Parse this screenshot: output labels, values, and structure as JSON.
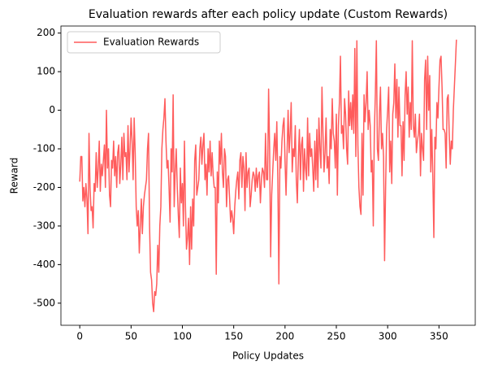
{
  "chart_data": {
    "type": "line",
    "title": "Evaluation rewards after each policy update (Custom Rewards)",
    "xlabel": "Policy Updates",
    "ylabel": "Reward",
    "xlim": [
      -18.35,
      385.35
    ],
    "ylim": [
      -557.3,
      218.3
    ],
    "xticks": [
      0,
      50,
      100,
      150,
      200,
      250,
      300,
      350
    ],
    "yticks": [
      -500,
      -400,
      -300,
      -200,
      -100,
      0,
      100,
      200
    ],
    "legend": "upper left",
    "grid": false,
    "series": [
      {
        "name": "Evaluation Rewards",
        "color": "#ff5c5c",
        "values": [
          -185,
          -120,
          -120,
          -235,
          -200,
          -250,
          -190,
          -230,
          -320,
          -60,
          -200,
          -260,
          -250,
          -305,
          -190,
          -210,
          -110,
          -200,
          -150,
          -80,
          -210,
          -140,
          -170,
          -130,
          -90,
          -200,
          0,
          -150,
          -100,
          -220,
          -250,
          -130,
          -150,
          -80,
          -170,
          -120,
          -200,
          -110,
          -90,
          -190,
          -140,
          -70,
          -180,
          -60,
          -120,
          -110,
          -180,
          -40,
          -160,
          -100,
          -20,
          -80,
          -180,
          -20,
          -110,
          -250,
          -300,
          -260,
          -370,
          -300,
          -230,
          -320,
          -250,
          -220,
          -200,
          -180,
          -100,
          -60,
          -300,
          -420,
          -440,
          -500,
          -522,
          -470,
          -480,
          -450,
          -350,
          -420,
          -300,
          -250,
          -100,
          -50,
          -20,
          30,
          -80,
          -150,
          -130,
          -200,
          -290,
          -100,
          -160,
          40,
          -250,
          -160,
          -100,
          -200,
          -270,
          -330,
          -150,
          -240,
          -190,
          -300,
          -80,
          -250,
          -360,
          -330,
          -280,
          -400,
          -250,
          -360,
          -230,
          -300,
          -130,
          -90,
          -220,
          -200,
          -180,
          -100,
          -70,
          -140,
          -90,
          -60,
          -180,
          -140,
          -220,
          -100,
          -160,
          -80,
          -170,
          -110,
          -170,
          -200,
          -200,
          -425,
          -160,
          -240,
          -80,
          -140,
          -60,
          -160,
          -200,
          -100,
          -120,
          -250,
          -180,
          -170,
          -230,
          -290,
          -260,
          -280,
          -320,
          -250,
          -210,
          -180,
          -160,
          -230,
          -130,
          -110,
          -200,
          -120,
          -150,
          -260,
          -110,
          -200,
          -160,
          -150,
          -250,
          -220,
          -180,
          -160,
          -170,
          -210,
          -150,
          -200,
          -170,
          -160,
          -240,
          -180,
          -150,
          -160,
          -200,
          -60,
          -180,
          -180,
          55,
          -100,
          -380,
          -220,
          -160,
          -100,
          -60,
          -130,
          -30,
          -180,
          -450,
          -120,
          -150,
          -80,
          -40,
          -20,
          -130,
          -220,
          -110,
          0,
          -110,
          -60,
          20,
          -160,
          -100,
          -120,
          -40,
          -180,
          -240,
          -120,
          -50,
          -180,
          -90,
          -70,
          -210,
          -100,
          -150,
          -180,
          -20,
          -170,
          -60,
          -120,
          -100,
          -150,
          -210,
          -80,
          -180,
          -50,
          -200,
          -20,
          -100,
          -150,
          60,
          -60,
          -160,
          -110,
          -20,
          -150,
          -120,
          -190,
          -50,
          -100,
          30,
          -60,
          -80,
          -150,
          -10,
          -220,
          -40,
          20,
          140,
          -60,
          -40,
          -100,
          30,
          -10,
          -100,
          -140,
          50,
          -40,
          20,
          -50,
          40,
          -60,
          160,
          -120,
          180,
          -90,
          -200,
          -250,
          -270,
          -60,
          -220,
          40,
          -30,
          20,
          100,
          -50,
          0,
          -40,
          -160,
          -130,
          -300,
          -60,
          40,
          180,
          -100,
          -130,
          -10,
          60,
          -100,
          -60,
          -120,
          -390,
          -200,
          -50,
          0,
          60,
          -160,
          -80,
          -190,
          -10,
          20,
          120,
          -20,
          80,
          -70,
          60,
          -40,
          -40,
          -170,
          -30,
          -130,
          40,
          100,
          -10,
          60,
          -70,
          20,
          -50,
          180,
          -40,
          -70,
          -10,
          -110,
          -80,
          -60,
          -10,
          -170,
          -60,
          -100,
          -130,
          80,
          130,
          -50,
          140,
          0,
          90,
          -160,
          -50,
          -170,
          -330,
          -70,
          -100,
          20,
          -20,
          60,
          130,
          140,
          60,
          -50,
          -50,
          -60,
          -150,
          30,
          40,
          -60,
          -140,
          -80,
          -100,
          0,
          60,
          120,
          183
        ]
      }
    ]
  }
}
